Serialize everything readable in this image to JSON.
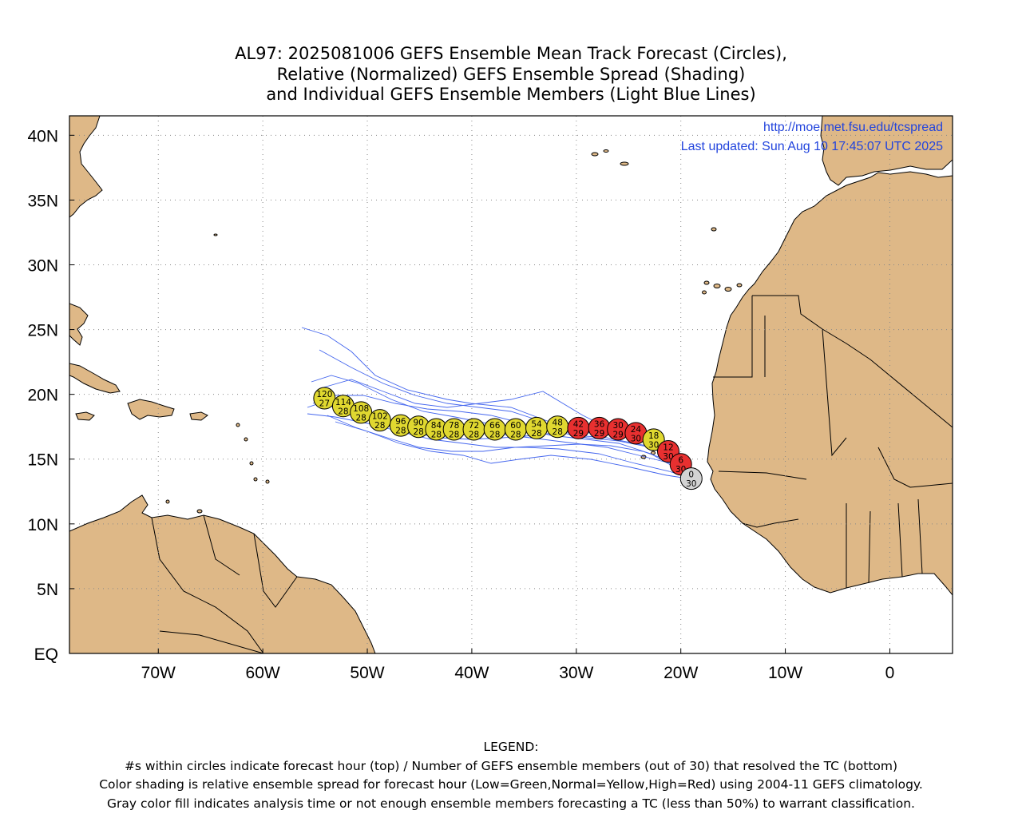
{
  "title": {
    "line1": "AL97: 2025081006 GEFS Ensemble Mean Track Forecast (Circles),",
    "line2": "Relative (Normalized) GEFS Ensemble Spread (Shading)",
    "line3": "and Individual GEFS Ensemble Members (Light Blue Lines)"
  },
  "source": {
    "url": "http://moe.met.fsu.edu/tcspread",
    "updated": "Last updated: Sun Aug 10 17:45:07 UTC 2025"
  },
  "axes": {
    "lon_labels": [
      "70W",
      "60W",
      "50W",
      "40W",
      "30W",
      "20W",
      "10W",
      "0"
    ],
    "lat_labels": [
      "EQ",
      "5N",
      "10N",
      "15N",
      "20N",
      "25N",
      "30N",
      "35N",
      "40N"
    ]
  },
  "colors": {
    "land": "#deb887",
    "ocean": "#ffffff",
    "member_tracks": "#4466ee",
    "spread_normal": "#e0d830",
    "spread_high": "#e83030",
    "analysis": "#d3d3d3",
    "link_text": "#2244dd"
  },
  "chart_data": {
    "type": "map",
    "lon_range": [
      -78.5,
      6
    ],
    "lat_range": [
      0,
      41.5
    ],
    "grid": true,
    "mean_track": [
      {
        "hour": "0",
        "members": "30",
        "lon": -19.0,
        "lat": 13.5,
        "spread": "gray"
      },
      {
        "hour": "6",
        "members": "30",
        "lon": -20.0,
        "lat": 14.6,
        "spread": "red"
      },
      {
        "hour": "12",
        "members": "30",
        "lon": -21.2,
        "lat": 15.6,
        "spread": "red"
      },
      {
        "hour": "18",
        "members": "30",
        "lon": -22.6,
        "lat": 16.5,
        "spread": "yellow"
      },
      {
        "hour": "24",
        "members": "30",
        "lon": -24.3,
        "lat": 17.0,
        "spread": "red"
      },
      {
        "hour": "30",
        "members": "29",
        "lon": -26.0,
        "lat": 17.3,
        "spread": "red"
      },
      {
        "hour": "36",
        "members": "29",
        "lon": -27.8,
        "lat": 17.4,
        "spread": "red"
      },
      {
        "hour": "42",
        "members": "29",
        "lon": -29.8,
        "lat": 17.4,
        "spread": "red"
      },
      {
        "hour": "48",
        "members": "28",
        "lon": -31.8,
        "lat": 17.5,
        "spread": "yellow"
      },
      {
        "hour": "54",
        "members": "28",
        "lon": -33.8,
        "lat": 17.4,
        "spread": "yellow"
      },
      {
        "hour": "60",
        "members": "28",
        "lon": -35.8,
        "lat": 17.3,
        "spread": "yellow"
      },
      {
        "hour": "66",
        "members": "28",
        "lon": -37.8,
        "lat": 17.3,
        "spread": "yellow"
      },
      {
        "hour": "72",
        "members": "28",
        "lon": -39.8,
        "lat": 17.3,
        "spread": "yellow"
      },
      {
        "hour": "78",
        "members": "28",
        "lon": -41.7,
        "lat": 17.3,
        "spread": "yellow"
      },
      {
        "hour": "84",
        "members": "28",
        "lon": -43.4,
        "lat": 17.3,
        "spread": "yellow"
      },
      {
        "hour": "90",
        "members": "28",
        "lon": -45.1,
        "lat": 17.5,
        "spread": "yellow"
      },
      {
        "hour": "96",
        "members": "28",
        "lon": -46.8,
        "lat": 17.6,
        "spread": "yellow"
      },
      {
        "hour": "102",
        "members": "28",
        "lon": -48.8,
        "lat": 18.0,
        "spread": "yellow"
      },
      {
        "hour": "108",
        "members": "28",
        "lon": -50.6,
        "lat": 18.6,
        "spread": "yellow"
      },
      {
        "hour": "114",
        "members": "28",
        "lon": -52.3,
        "lat": 19.1,
        "spread": "yellow"
      },
      {
        "hour": "120",
        "members": "27",
        "lon": -54.1,
        "lat": 19.7,
        "spread": "yellow"
      }
    ]
  },
  "legend": {
    "heading": "LEGEND:",
    "line1": "#s within circles indicate forecast hour (top) / Number of GEFS ensemble members (out of 30) that resolved the TC (bottom)",
    "line2": "Color shading is relative ensemble spread for forecast hour (Low=Green,Normal=Yellow,High=Red) using 2004-11 GEFS climatology.",
    "line3": "Gray color fill indicates analysis time or not enough ensemble members forecasting a TC (less than 50%) to warrant classification."
  }
}
